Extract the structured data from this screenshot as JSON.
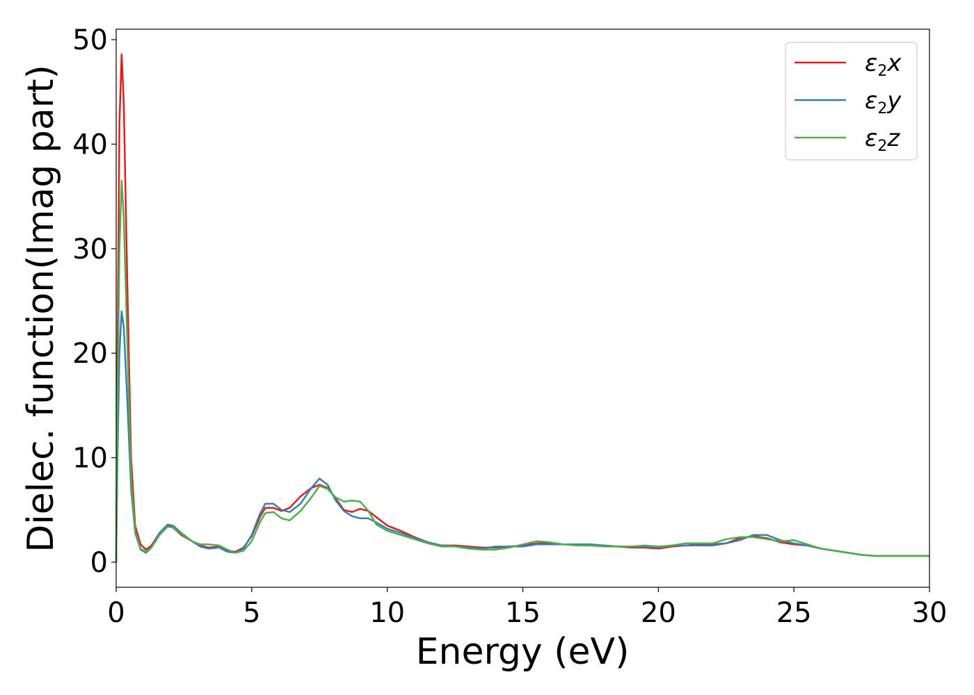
{
  "chart_data": {
    "type": "line",
    "title": "",
    "xlabel": "Energy (eV)",
    "ylabel": "Dielec. function(Imag part)",
    "xlim": [
      0,
      30
    ],
    "ylim": [
      -2.4,
      51
    ],
    "xticks": [
      "0",
      "5",
      "10",
      "15",
      "20",
      "25",
      "30"
    ],
    "yticks": [
      "0",
      "10",
      "20",
      "30",
      "40",
      "50"
    ],
    "xtick_values": [
      0,
      5,
      10,
      15,
      20,
      25,
      30
    ],
    "ytick_values": [
      0,
      10,
      20,
      30,
      40,
      50
    ],
    "grid": false,
    "legend_position": "top-right",
    "series": [
      {
        "name": "ε₂x",
        "legend_symbol": "ε",
        "legend_sub": "2",
        "legend_axis": "x",
        "color": "#e41a1c",
        "points": [
          [
            0,
            0
          ],
          [
            0.05,
            20
          ],
          [
            0.12,
            42
          ],
          [
            0.2,
            48.6
          ],
          [
            0.28,
            44
          ],
          [
            0.4,
            28
          ],
          [
            0.55,
            10
          ],
          [
            0.7,
            3.5
          ],
          [
            0.9,
            1.7
          ],
          [
            1.1,
            1.2
          ],
          [
            1.3,
            1.6
          ],
          [
            1.6,
            2.8
          ],
          [
            1.9,
            3.5
          ],
          [
            2.1,
            3.3
          ],
          [
            2.4,
            2.6
          ],
          [
            2.8,
            2
          ],
          [
            3.1,
            1.6
          ],
          [
            3.4,
            1.4
          ],
          [
            3.8,
            1.5
          ],
          [
            4.1,
            1.1
          ],
          [
            4.4,
            1
          ],
          [
            4.7,
            1.4
          ],
          [
            5.0,
            2.5
          ],
          [
            5.3,
            4.3
          ],
          [
            5.5,
            5.2
          ],
          [
            5.8,
            5.2
          ],
          [
            6.1,
            4.9
          ],
          [
            6.4,
            5.2
          ],
          [
            6.8,
            6.3
          ],
          [
            7.2,
            7.1
          ],
          [
            7.5,
            7.4
          ],
          [
            7.8,
            7.1
          ],
          [
            8.1,
            6.1
          ],
          [
            8.4,
            5.0
          ],
          [
            8.7,
            4.8
          ],
          [
            9.0,
            5.1
          ],
          [
            9.3,
            4.9
          ],
          [
            9.6,
            4.3
          ],
          [
            10.0,
            3.5
          ],
          [
            10.5,
            3
          ],
          [
            11.0,
            2.4
          ],
          [
            11.5,
            1.9
          ],
          [
            12.0,
            1.6
          ],
          [
            12.5,
            1.6
          ],
          [
            13,
            1.5
          ],
          [
            13.5,
            1.4
          ],
          [
            14,
            1.4
          ],
          [
            14.5,
            1.5
          ],
          [
            15,
            1.6
          ],
          [
            15.5,
            1.8
          ],
          [
            16,
            1.8
          ],
          [
            16.5,
            1.7
          ],
          [
            17,
            1.7
          ],
          [
            17.5,
            1.6
          ],
          [
            18,
            1.6
          ],
          [
            18.5,
            1.5
          ],
          [
            19,
            1.4
          ],
          [
            19.5,
            1.4
          ],
          [
            20,
            1.3
          ],
          [
            20.5,
            1.5
          ],
          [
            21,
            1.6
          ],
          [
            21.5,
            1.7
          ],
          [
            22,
            1.7
          ],
          [
            22.5,
            1.8
          ],
          [
            23,
            2.3
          ],
          [
            23.5,
            2.5
          ],
          [
            24,
            2.3
          ],
          [
            24.5,
            1.9
          ],
          [
            25,
            1.7
          ],
          [
            25.5,
            1.6
          ],
          [
            26,
            1.3
          ],
          [
            26.5,
            1.1
          ],
          [
            27,
            0.9
          ],
          [
            27.5,
            0.7
          ],
          [
            28,
            0.6
          ],
          [
            28.5,
            0.6
          ],
          [
            29,
            0.6
          ],
          [
            29.5,
            0.6
          ],
          [
            30,
            0.6
          ]
        ]
      },
      {
        "name": "ε₂y",
        "legend_symbol": "ε",
        "legend_sub": "2",
        "legend_axis": "y",
        "color": "#377eb8",
        "points": [
          [
            0,
            0
          ],
          [
            0.05,
            10
          ],
          [
            0.12,
            20
          ],
          [
            0.2,
            24
          ],
          [
            0.28,
            22.5
          ],
          [
            0.4,
            16
          ],
          [
            0.55,
            7
          ],
          [
            0.7,
            2.8
          ],
          [
            0.9,
            1.2
          ],
          [
            1.1,
            0.9
          ],
          [
            1.3,
            1.4
          ],
          [
            1.6,
            2.8
          ],
          [
            1.9,
            3.6
          ],
          [
            2.1,
            3.5
          ],
          [
            2.4,
            2.8
          ],
          [
            2.8,
            2.0
          ],
          [
            3.1,
            1.5
          ],
          [
            3.4,
            1.3
          ],
          [
            3.8,
            1.4
          ],
          [
            4.1,
            1.0
          ],
          [
            4.4,
            0.9
          ],
          [
            4.7,
            1.3
          ],
          [
            5.0,
            2.6
          ],
          [
            5.3,
            4.6
          ],
          [
            5.5,
            5.6
          ],
          [
            5.8,
            5.6
          ],
          [
            6.1,
            5.0
          ],
          [
            6.4,
            4.8
          ],
          [
            6.8,
            5.6
          ],
          [
            7.2,
            7.1
          ],
          [
            7.5,
            8.0
          ],
          [
            7.8,
            7.4
          ],
          [
            8.1,
            5.9
          ],
          [
            8.4,
            4.9
          ],
          [
            8.7,
            4.4
          ],
          [
            9.0,
            4.2
          ],
          [
            9.3,
            4.2
          ],
          [
            9.6,
            3.8
          ],
          [
            10.0,
            3.2
          ],
          [
            10.5,
            2.8
          ],
          [
            11.0,
            2.3
          ],
          [
            11.5,
            1.9
          ],
          [
            12.0,
            1.6
          ],
          [
            12.5,
            1.5
          ],
          [
            13,
            1.4
          ],
          [
            13.5,
            1.3
          ],
          [
            14,
            1.5
          ],
          [
            14.5,
            1.5
          ],
          [
            15,
            1.5
          ],
          [
            15.5,
            1.7
          ],
          [
            16,
            1.7
          ],
          [
            16.5,
            1.7
          ],
          [
            17,
            1.7
          ],
          [
            17.5,
            1.7
          ],
          [
            18,
            1.6
          ],
          [
            18.5,
            1.5
          ],
          [
            19,
            1.5
          ],
          [
            19.5,
            1.5
          ],
          [
            20,
            1.4
          ],
          [
            20.5,
            1.6
          ],
          [
            21,
            1.6
          ],
          [
            21.5,
            1.6
          ],
          [
            22,
            1.6
          ],
          [
            22.5,
            1.8
          ],
          [
            23,
            2.1
          ],
          [
            23.5,
            2.6
          ],
          [
            24,
            2.6
          ],
          [
            24.5,
            2.1
          ],
          [
            25,
            1.8
          ],
          [
            25.5,
            1.6
          ],
          [
            26,
            1.3
          ],
          [
            26.5,
            1.1
          ],
          [
            27,
            0.9
          ],
          [
            27.5,
            0.7
          ],
          [
            28,
            0.6
          ],
          [
            28.5,
            0.6
          ],
          [
            29,
            0.6
          ],
          [
            29.5,
            0.6
          ],
          [
            30,
            0.6
          ]
        ]
      },
      {
        "name": "ε₂z",
        "legend_symbol": "ε",
        "legend_sub": "2",
        "legend_axis": "z",
        "color": "#4daf4a",
        "points": [
          [
            0,
            0
          ],
          [
            0.05,
            15
          ],
          [
            0.12,
            30
          ],
          [
            0.2,
            36.5
          ],
          [
            0.28,
            33
          ],
          [
            0.4,
            22
          ],
          [
            0.55,
            8
          ],
          [
            0.7,
            3.0
          ],
          [
            0.9,
            1.3
          ],
          [
            1.1,
            1.0
          ],
          [
            1.3,
            1.4
          ],
          [
            1.6,
            2.6
          ],
          [
            1.9,
            3.4
          ],
          [
            2.1,
            3.3
          ],
          [
            2.4,
            2.7
          ],
          [
            2.8,
            2.0
          ],
          [
            3.1,
            1.7
          ],
          [
            3.4,
            1.7
          ],
          [
            3.8,
            1.6
          ],
          [
            4.1,
            1.2
          ],
          [
            4.4,
            0.9
          ],
          [
            4.7,
            1.1
          ],
          [
            5.0,
            2.0
          ],
          [
            5.3,
            3.8
          ],
          [
            5.5,
            4.7
          ],
          [
            5.8,
            4.8
          ],
          [
            6.1,
            4.2
          ],
          [
            6.4,
            4.0
          ],
          [
            6.8,
            4.9
          ],
          [
            7.2,
            6.2
          ],
          [
            7.5,
            7.3
          ],
          [
            7.8,
            7.0
          ],
          [
            8.1,
            6.2
          ],
          [
            8.4,
            5.8
          ],
          [
            8.7,
            5.9
          ],
          [
            9.0,
            5.8
          ],
          [
            9.3,
            4.9
          ],
          [
            9.6,
            3.6
          ],
          [
            10.0,
            3.0
          ],
          [
            10.5,
            2.6
          ],
          [
            11.0,
            2.2
          ],
          [
            11.5,
            1.8
          ],
          [
            12.0,
            1.5
          ],
          [
            12.5,
            1.5
          ],
          [
            13,
            1.3
          ],
          [
            13.5,
            1.2
          ],
          [
            14,
            1.2
          ],
          [
            14.5,
            1.4
          ],
          [
            15,
            1.7
          ],
          [
            15.5,
            2.0
          ],
          [
            16,
            1.9
          ],
          [
            16.5,
            1.7
          ],
          [
            17,
            1.6
          ],
          [
            17.5,
            1.6
          ],
          [
            18,
            1.5
          ],
          [
            18.5,
            1.5
          ],
          [
            19,
            1.5
          ],
          [
            19.5,
            1.6
          ],
          [
            20,
            1.5
          ],
          [
            20.5,
            1.6
          ],
          [
            21,
            1.8
          ],
          [
            21.5,
            1.8
          ],
          [
            22,
            1.8
          ],
          [
            22.5,
            2.2
          ],
          [
            23,
            2.4
          ],
          [
            23.5,
            2.4
          ],
          [
            24,
            2.2
          ],
          [
            24.5,
            2.0
          ],
          [
            25,
            2.1
          ],
          [
            25.5,
            1.7
          ],
          [
            26,
            1.3
          ],
          [
            26.5,
            1.1
          ],
          [
            27,
            0.9
          ],
          [
            27.5,
            0.7
          ],
          [
            28,
            0.6
          ],
          [
            28.5,
            0.6
          ],
          [
            29,
            0.6
          ],
          [
            29.5,
            0.6
          ],
          [
            30,
            0.6
          ]
        ]
      }
    ]
  }
}
